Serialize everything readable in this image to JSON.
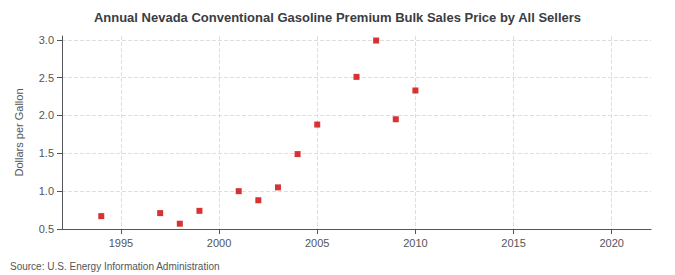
{
  "chart_data": {
    "type": "scatter",
    "title": "Annual Nevada Conventional Gasoline Premium Bulk Sales Price by All Sellers",
    "ylabel": "Dollars per Gallon",
    "source": "Source: U.S. Energy Information Administration",
    "x": [
      1994,
      1997,
      1998,
      1999,
      2001,
      2002,
      2003,
      2004,
      2005,
      2007,
      2008,
      2009,
      2010
    ],
    "values": [
      0.67,
      0.71,
      0.57,
      0.74,
      1.0,
      0.88,
      1.05,
      1.49,
      1.88,
      2.51,
      2.99,
      1.95,
      2.33
    ],
    "color": "#cc0000",
    "marker": "square",
    "xlim": [
      1992,
      2022
    ],
    "xticks": [
      1995,
      2000,
      2005,
      2010,
      2015,
      2020
    ],
    "ylim": [
      0.5,
      3.05
    ],
    "yticks": [
      0.5,
      {
        "value": 1.0,
        "label": "1.0"
      },
      1.5,
      {
        "value": 2.0,
        "label": "2.0"
      },
      2.5,
      {
        "value": 3.0,
        "label": "3.0"
      }
    ],
    "grid": true
  }
}
